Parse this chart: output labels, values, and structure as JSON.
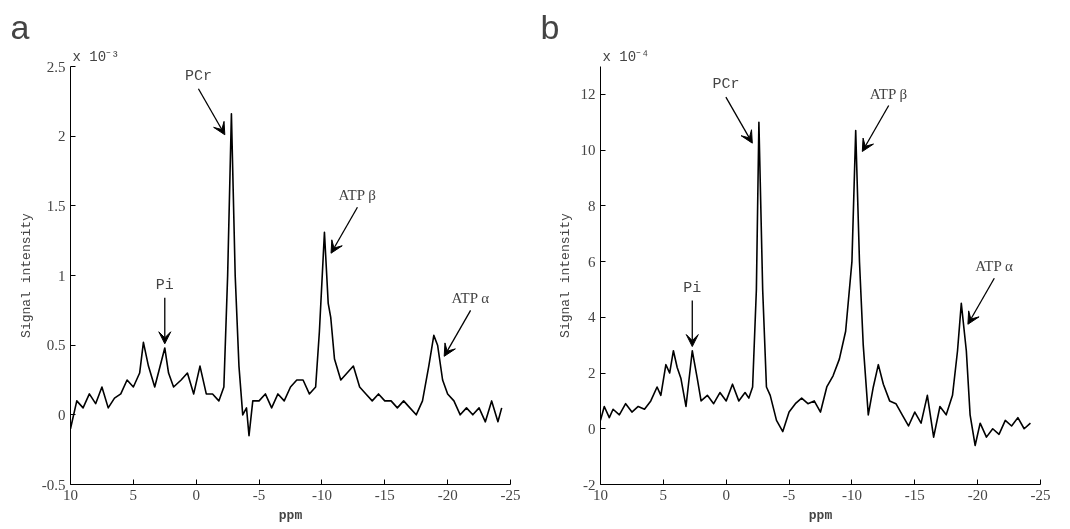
{
  "chart_data": [
    {
      "type": "line",
      "title": "a",
      "xlabel": "ppm",
      "ylabel": "Signal intensity",
      "xlim": [
        10,
        -25
      ],
      "xticks": [
        10,
        5,
        0,
        -5,
        -10,
        -15,
        -20,
        -25
      ],
      "ylim": [
        -0.5,
        2.5
      ],
      "yticks": [
        -0.5,
        0,
        0.5,
        1,
        1.5,
        2,
        2.5
      ],
      "grid": false,
      "line_style": "solid",
      "annotations": [
        "x 10⁻³",
        {
          "text": "PCr",
          "x": -2.8,
          "y": 2.16
        },
        {
          "text": "Pi",
          "x": 2.5,
          "y": 0.48
        },
        {
          "text": "ATP β",
          "x": -10.2,
          "y": 1.31
        },
        {
          "text": "ATP α",
          "x": -19.2,
          "y": 0.57
        }
      ],
      "series": [
        {
          "color": "#000000",
          "x": [
            10,
            9.5,
            9,
            8.5,
            8,
            7.5,
            7,
            6.5,
            6,
            5.5,
            5,
            4.5,
            4.2,
            3.8,
            3.3,
            2.5,
            2.2,
            1.8,
            1.2,
            0.7,
            0.2,
            -0.3,
            -0.8,
            -1.3,
            -1.8,
            -2.2,
            -2.5,
            -2.8,
            -3.1,
            -3.4,
            -3.7,
            -4.0,
            -4.2,
            -4.5,
            -5,
            -5.5,
            -6,
            -6.5,
            -7,
            -7.5,
            -8,
            -8.5,
            -9,
            -9.5,
            -9.8,
            -10.2,
            -10.5,
            -10.7,
            -11,
            -11.5,
            -12,
            -12.5,
            -13,
            -13.5,
            -14,
            -14.5,
            -15,
            -15.5,
            -16,
            -16.5,
            -17,
            -17.5,
            -18,
            -18.5,
            -18.9,
            -19.2,
            -19.6,
            -20,
            -20.5,
            -21,
            -21.5,
            -22,
            -22.5,
            -23,
            -23.5,
            -24,
            -24.3
          ],
          "values": [
            -0.1,
            0.1,
            0.05,
            0.15,
            0.08,
            0.2,
            0.05,
            0.12,
            0.15,
            0.25,
            0.2,
            0.3,
            0.52,
            0.35,
            0.2,
            0.48,
            0.3,
            0.2,
            0.25,
            0.3,
            0.15,
            0.35,
            0.15,
            0.15,
            0.1,
            0.2,
            1.0,
            2.16,
            1.0,
            0.35,
            0.0,
            0.05,
            -0.15,
            0.1,
            0.1,
            0.15,
            0.05,
            0.15,
            0.1,
            0.2,
            0.25,
            0.25,
            0.15,
            0.2,
            0.6,
            1.31,
            0.8,
            0.7,
            0.4,
            0.25,
            0.3,
            0.35,
            0.2,
            0.15,
            0.1,
            0.15,
            0.1,
            0.1,
            0.05,
            0.1,
            0.05,
            0.0,
            0.1,
            0.35,
            0.57,
            0.5,
            0.25,
            0.15,
            0.1,
            0.0,
            0.05,
            0.0,
            0.05,
            -0.05,
            0.1,
            -0.05,
            0.05
          ]
        }
      ]
    },
    {
      "type": "line",
      "title": "b",
      "xlabel": "ppm",
      "ylabel": "Signal intensity",
      "xlim": [
        10,
        -25
      ],
      "xticks": [
        10,
        5,
        0,
        -5,
        -10,
        -15,
        -20,
        -25
      ],
      "ylim": [
        -2,
        13
      ],
      "yticks": [
        -2,
        0,
        2,
        4,
        6,
        8,
        10,
        12
      ],
      "grid": false,
      "line_style": "solid",
      "annotations": [
        "x 10⁻⁴",
        {
          "text": "PCr",
          "x": -2.6,
          "y": 11.0
        },
        {
          "text": "Pi",
          "x": 2.7,
          "y": 2.8
        },
        {
          "text": "ATP β",
          "x": -10.3,
          "y": 10.7
        },
        {
          "text": "ATP α",
          "x": -18.7,
          "y": 4.5
        }
      ],
      "series": [
        {
          "color": "#000000",
          "x": [
            10,
            9.7,
            9.3,
            9,
            8.5,
            8,
            7.5,
            7,
            6.5,
            6,
            5.5,
            5.2,
            4.8,
            4.5,
            4.2,
            3.9,
            3.6,
            3.2,
            2.7,
            2.3,
            2.0,
            1.5,
            1,
            0.5,
            0,
            -0.5,
            -1,
            -1.5,
            -1.8,
            -2.1,
            -2.4,
            -2.6,
            -2.9,
            -3.2,
            -3.5,
            -4,
            -4.5,
            -5,
            -5.5,
            -6,
            -6.5,
            -7,
            -7.5,
            -8,
            -8.5,
            -9,
            -9.5,
            -10.0,
            -10.3,
            -10.6,
            -10.9,
            -11.3,
            -11.7,
            -12.1,
            -12.5,
            -13,
            -13.5,
            -14,
            -14.5,
            -15,
            -15.5,
            -16,
            -16.5,
            -17,
            -17.5,
            -18,
            -18.4,
            -18.7,
            -19.1,
            -19.4,
            -19.8,
            -20.2,
            -20.7,
            -21.2,
            -21.7,
            -22.2,
            -22.7,
            -23.2,
            -23.7,
            -24.2
          ],
          "values": [
            0.3,
            0.8,
            0.4,
            0.7,
            0.5,
            0.9,
            0.6,
            0.8,
            0.7,
            1.0,
            1.5,
            1.2,
            2.3,
            2.0,
            2.8,
            2.2,
            1.8,
            0.8,
            2.8,
            1.8,
            1.0,
            1.2,
            0.9,
            1.3,
            1.0,
            1.6,
            1.0,
            1.3,
            1.1,
            1.5,
            5.0,
            11.0,
            5.0,
            1.5,
            1.2,
            0.3,
            -0.1,
            0.6,
            0.9,
            1.1,
            0.9,
            1.0,
            0.6,
            1.5,
            1.9,
            2.5,
            3.5,
            6.0,
            10.7,
            6.0,
            3.0,
            0.5,
            1.5,
            2.3,
            1.6,
            1.0,
            0.9,
            0.5,
            0.1,
            0.6,
            0.2,
            1.2,
            -0.3,
            0.8,
            0.5,
            1.2,
            2.8,
            4.5,
            2.8,
            0.5,
            -0.6,
            0.2,
            -0.3,
            0.0,
            -0.2,
            0.3,
            0.1,
            0.4,
            0.0,
            0.2
          ]
        }
      ]
    }
  ]
}
